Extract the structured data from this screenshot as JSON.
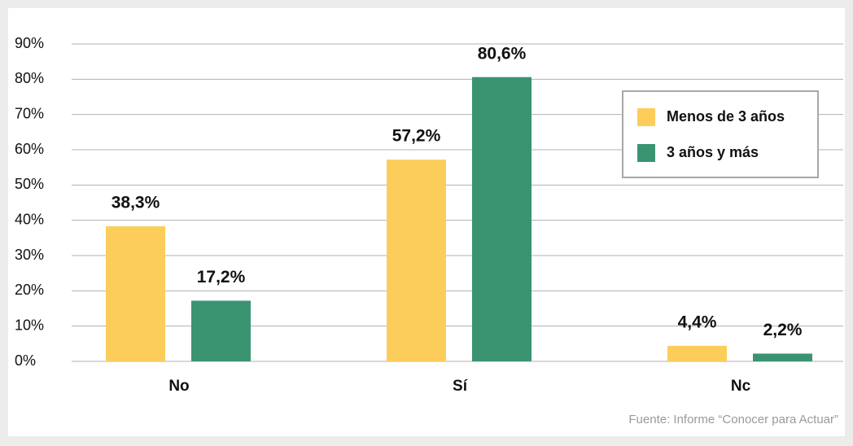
{
  "chart_data": {
    "type": "bar",
    "categories": [
      "No",
      "Sí",
      "Nc"
    ],
    "series": [
      {
        "name": "Menos de 3 años",
        "color": "#fdcd5b",
        "values": [
          38.3,
          57.2,
          4.4
        ],
        "value_labels": [
          "38,3%",
          "57,2%",
          "4,4%"
        ]
      },
      {
        "name": "3 años y más",
        "color": "#3a9471",
        "values": [
          17.2,
          80.6,
          2.2
        ],
        "value_labels": [
          "17,2%",
          "80,6%",
          "2,2%"
        ]
      }
    ],
    "ylim": [
      0,
      90
    ],
    "yticks": [
      {
        "value": 0,
        "label": "0%"
      },
      {
        "value": 10,
        "label": "10%"
      },
      {
        "value": 20,
        "label": "20%"
      },
      {
        "value": 30,
        "label": "30%"
      },
      {
        "value": 40,
        "label": "40%"
      },
      {
        "value": 50,
        "label": "50%"
      },
      {
        "value": 60,
        "label": "60%"
      },
      {
        "value": 70,
        "label": "70%"
      },
      {
        "value": 80,
        "label": "80%"
      },
      {
        "value": 90,
        "label": "90%"
      }
    ],
    "grid": true,
    "legend": "upper right",
    "source": "Fuente: Informe “Conocer para Actuar”"
  }
}
